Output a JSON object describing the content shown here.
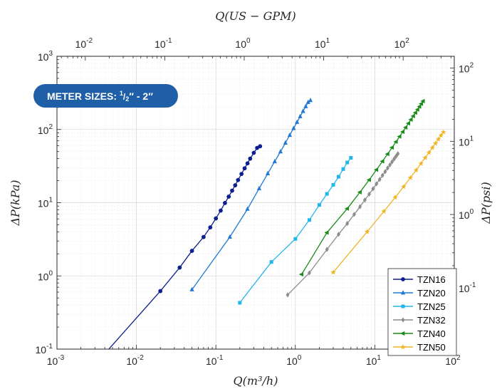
{
  "chart_data": {
    "type": "line",
    "title": "",
    "xlabel": "Q(m³/h)",
    "ylabel": "ΔP(kPa)",
    "x2label": "Q(US − GPM)",
    "y2label": "ΔP(psi)",
    "xscale": "log",
    "yscale": "log",
    "xlim": [
      0.001,
      100
    ],
    "ylim": [
      0.1,
      1000
    ],
    "x2lim": [
      0.0044,
      440
    ],
    "y2lim": [
      0.0145,
      145
    ],
    "grid": true,
    "legend_position": "bottom-right",
    "x_ticks": [
      {
        "base": "10",
        "exp": "-3"
      },
      {
        "base": "10",
        "exp": "-2"
      },
      {
        "base": "10",
        "exp": "-1"
      },
      {
        "base": "10",
        "exp": "0"
      },
      {
        "base": "10",
        "exp": "1"
      },
      {
        "base": "10",
        "exp": "2"
      }
    ],
    "y_ticks": [
      {
        "base": "10",
        "exp": "-1"
      },
      {
        "base": "10",
        "exp": "0"
      },
      {
        "base": "10",
        "exp": "1"
      },
      {
        "base": "10",
        "exp": "2"
      },
      {
        "base": "10",
        "exp": "3"
      }
    ],
    "x2_ticks": [
      {
        "base": "10",
        "exp": "-2"
      },
      {
        "base": "10",
        "exp": "-1"
      },
      {
        "base": "10",
        "exp": "0"
      },
      {
        "base": "10",
        "exp": "1"
      },
      {
        "base": "10",
        "exp": "2"
      }
    ],
    "y2_ticks": [
      {
        "base": "10",
        "exp": "-1"
      },
      {
        "base": "10",
        "exp": "0"
      },
      {
        "base": "10",
        "exp": "1"
      },
      {
        "base": "10",
        "exp": "2"
      }
    ],
    "series": [
      {
        "name": "TZN16",
        "color": "#0b1f8f",
        "marker": "circle",
        "line_start": [
          0.0032,
          0.066
        ],
        "x": [
          0.02,
          0.035,
          0.05,
          0.07,
          0.085,
          0.1,
          0.115,
          0.13,
          0.145,
          0.16,
          0.175,
          0.19,
          0.21,
          0.23,
          0.25,
          0.27,
          0.3,
          0.33,
          0.36
        ],
        "y": [
          0.62,
          1.3,
          2.2,
          3.4,
          4.6,
          6.1,
          7.8,
          9.9,
          12.1,
          14.6,
          17.3,
          20.4,
          24.7,
          29.5,
          34.5,
          40,
          48,
          56,
          59
        ]
      },
      {
        "name": "TZN20",
        "color": "#1f78d6",
        "marker": "triangle-up",
        "x": [
          0.05,
          0.15,
          0.25,
          0.35,
          0.45,
          0.55,
          0.65,
          0.75,
          0.85,
          0.95,
          1.05,
          1.15,
          1.25,
          1.35,
          1.45,
          1.55
        ],
        "y": [
          0.65,
          3.4,
          8.2,
          15.6,
          25.1,
          36.5,
          49.8,
          65.6,
          83.6,
          103.6,
          125.8,
          150.5,
          177.8,
          206.3,
          235.7,
          250
        ]
      },
      {
        "name": "TZN25",
        "color": "#22b6ea",
        "marker": "square",
        "x": [
          0.2,
          0.5,
          1.0,
          1.5,
          2.0,
          2.5,
          3.0,
          3.5,
          4.0,
          4.5,
          5.0
        ],
        "y": [
          0.43,
          1.55,
          3.2,
          5.8,
          9.3,
          13.2,
          17.5,
          22.6,
          28.8,
          35.4,
          41
        ]
      },
      {
        "name": "TZN32",
        "color": "#8c8c8c",
        "marker": "diamond",
        "x": [
          0.8,
          1.5,
          2.5,
          3.5,
          4.5,
          5.5,
          6.5,
          7.5,
          8.5,
          9.5,
          10.5,
          11.5,
          12.5,
          13.5,
          14.5,
          15.5,
          16.5,
          17.5,
          18.5,
          19.5
        ],
        "y": [
          0.55,
          1.1,
          2.3,
          3.7,
          5.2,
          6.9,
          8.8,
          10.9,
          13.1,
          15.5,
          18.1,
          20.8,
          23.6,
          26.6,
          29.7,
          32.9,
          36.2,
          39.6,
          43.1,
          46.7
        ]
      },
      {
        "name": "TZN40",
        "color": "#1a8c1a",
        "marker": "triangle-left",
        "x": [
          1.2,
          2.5,
          4.5,
          6.5,
          8.5,
          10.5,
          12.5,
          14.5,
          16.5,
          18.5,
          20.5,
          22.5,
          24.5,
          26.5,
          28.5,
          30.5,
          32.5,
          34.5,
          36.5,
          38.5,
          40.5
        ],
        "y": [
          1.05,
          3.9,
          8.3,
          13.9,
          20.5,
          28.2,
          36.8,
          46.3,
          56.7,
          68,
          80.1,
          93,
          106.7,
          121.2,
          136.5,
          152.6,
          169.5,
          187.1,
          205.5,
          224.6,
          244.4
        ]
      },
      {
        "name": "TZN50",
        "color": "#f0b323",
        "marker": "star",
        "x": [
          3,
          8,
          13,
          18,
          23,
          28,
          33,
          38,
          43,
          48,
          53,
          58,
          63,
          68,
          73
        ],
        "y": [
          1.12,
          4,
          7.6,
          11.8,
          16.5,
          21.9,
          27.7,
          34.1,
          41,
          48.4,
          56.3,
          64.7,
          73.6,
          82.9,
          92
        ]
      }
    ]
  },
  "badge": {
    "prefix": "METER SIZES: ",
    "frac_num": "1",
    "frac_den": "2",
    "suffix": "″ - 2″"
  }
}
